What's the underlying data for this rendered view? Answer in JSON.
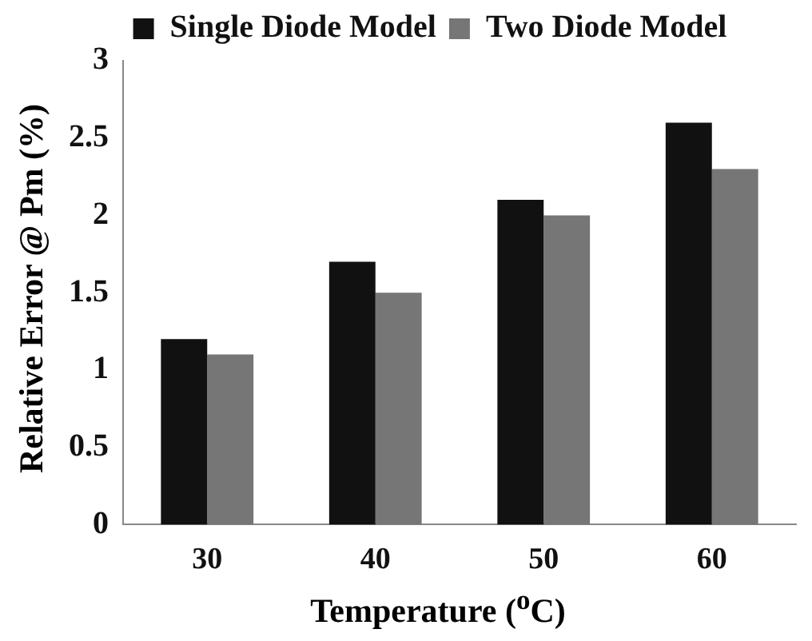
{
  "chart_data": {
    "type": "bar",
    "xlabel": "Temperature ($^{o}$C)",
    "ylabel": "Relative Error @ Pm (%)",
    "categories": [
      "30",
      "40",
      "50",
      "60"
    ],
    "series": [
      {
        "name": "Single Diode Model",
        "color": "#111111",
        "values": [
          1.2,
          1.7,
          2.1,
          2.6
        ]
      },
      {
        "name": "Two Diode Model",
        "color": "#767676",
        "values": [
          1.1,
          1.5,
          2.0,
          2.3
        ]
      }
    ],
    "ylim": [
      0,
      3
    ],
    "yticks": [
      0,
      0.5,
      1,
      1.5,
      2,
      2.5,
      3
    ],
    "grid": false,
    "legend": "top"
  }
}
